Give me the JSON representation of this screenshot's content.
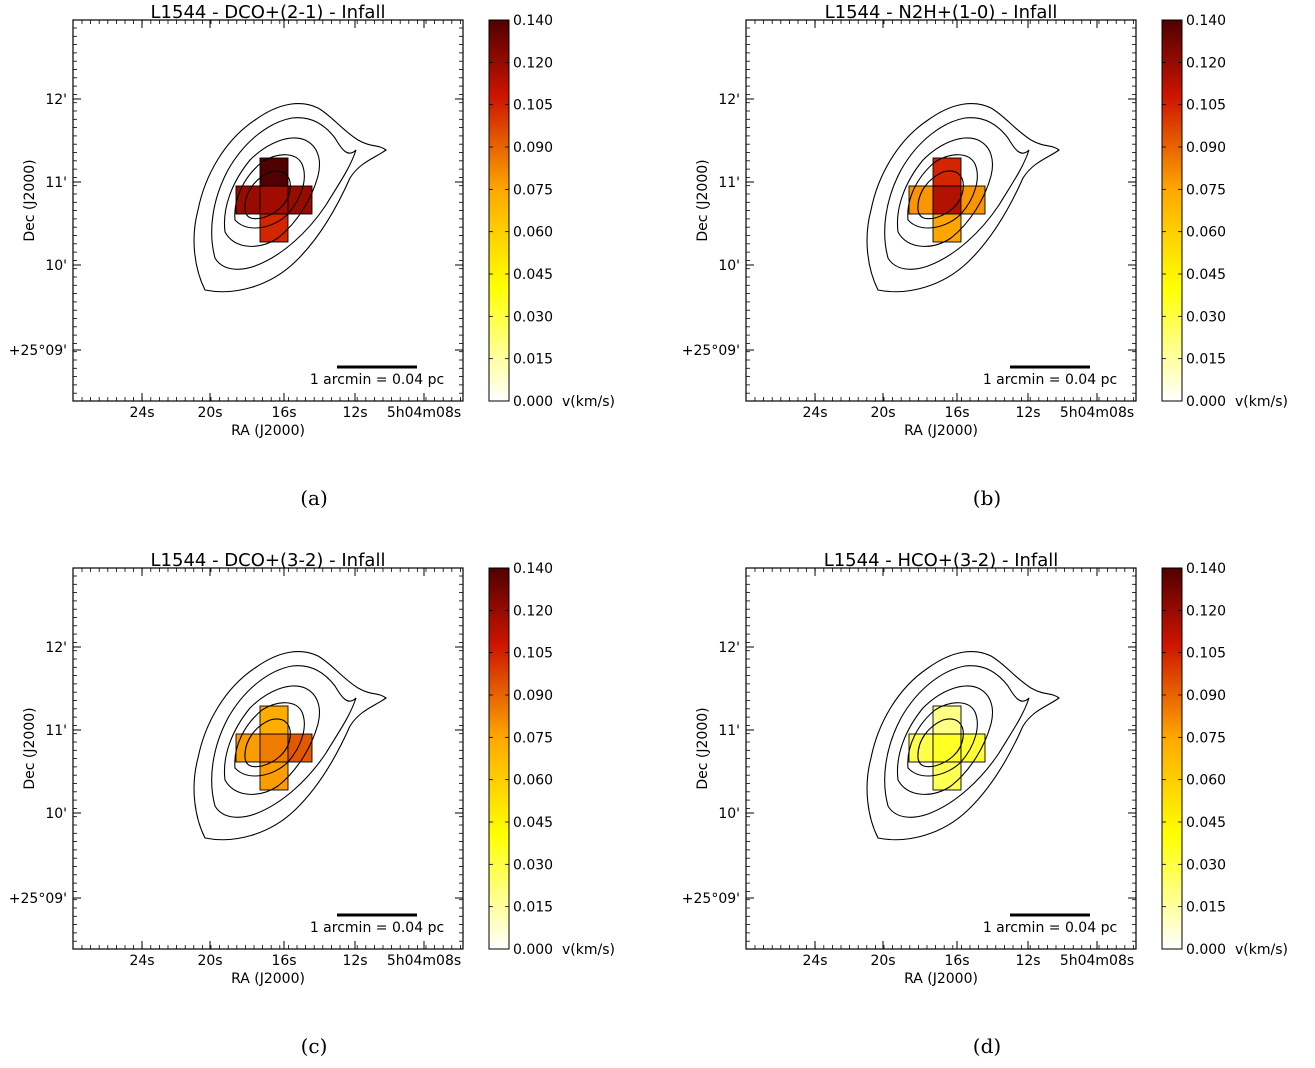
{
  "chart_data": [
    {
      "type": "heatmap",
      "title": "L1544 - DCO+(2-1) - Infall",
      "caption": "(a)",
      "xlabel": "RA (J2000)",
      "ylabel": "Dec (J2000)",
      "x_ticks": [
        "24s",
        "20s",
        "16s",
        "12s",
        "5h04m08s"
      ],
      "y_ticks": [
        "12'",
        "11'",
        "10'",
        "+25°09'"
      ],
      "scalebar_label": "1 arcmin = 0.04 pc",
      "colorbar": {
        "min": 0.0,
        "max": 0.14,
        "unit": "v(km/s)",
        "ticks": [
          "0.140",
          "0.120",
          "0.105",
          "0.090",
          "0.075",
          "0.060",
          "0.045",
          "0.030",
          "0.015",
          "0.000"
        ]
      },
      "pixels": {
        "center": 0.122,
        "north": 0.14,
        "south": 0.108,
        "east": 0.124,
        "west": 0.124
      }
    },
    {
      "type": "heatmap",
      "title": "L1544 - N2H+(1-0) - Infall",
      "caption": "(b)",
      "xlabel": "RA (J2000)",
      "ylabel": "Dec (J2000)",
      "x_ticks": [
        "24s",
        "20s",
        "16s",
        "12s",
        "5h04m08s"
      ],
      "y_ticks": [
        "12'",
        "11'",
        "10'",
        "+25°09'"
      ],
      "scalebar_label": "1 arcmin = 0.04 pc",
      "colorbar": {
        "min": 0.0,
        "max": 0.14,
        "unit": "v(km/s)",
        "ticks": [
          "0.140",
          "0.120",
          "0.105",
          "0.090",
          "0.075",
          "0.060",
          "0.045",
          "0.030",
          "0.015",
          "0.000"
        ]
      },
      "pixels": {
        "center": 0.118,
        "north": 0.108,
        "south": 0.078,
        "east": 0.082,
        "west": 0.082
      }
    },
    {
      "type": "heatmap",
      "title": "L1544 - DCO+(3-2) - Infall",
      "caption": "(c)",
      "xlabel": "RA (J2000)",
      "ylabel": "Dec (J2000)",
      "x_ticks": [
        "24s",
        "20s",
        "16s",
        "12s",
        "5h04m08s"
      ],
      "y_ticks": [
        "12'",
        "11'",
        "10'",
        "+25°09'"
      ],
      "scalebar_label": "1 arcmin = 0.04 pc",
      "colorbar": {
        "min": 0.0,
        "max": 0.14,
        "unit": "v(km/s)",
        "ticks": [
          "0.140",
          "0.120",
          "0.105",
          "0.090",
          "0.075",
          "0.060",
          "0.045",
          "0.030",
          "0.015",
          "0.000"
        ]
      },
      "pixels": {
        "center": 0.088,
        "north": 0.076,
        "south": 0.08,
        "east": 0.096,
        "west": 0.08
      }
    },
    {
      "type": "heatmap",
      "title": "L1544 - HCO+(3-2) - Infall",
      "caption": "(d)",
      "xlabel": "RA (J2000)",
      "ylabel": "Dec (J2000)",
      "x_ticks": [
        "24s",
        "20s",
        "16s",
        "12s",
        "5h04m08s"
      ],
      "y_ticks": [
        "12'",
        "11'",
        "10'",
        "+25°09'"
      ],
      "scalebar_label": "1 arcmin = 0.04 pc",
      "colorbar": {
        "min": 0.0,
        "max": 0.14,
        "unit": "v(km/s)",
        "ticks": [
          "0.140",
          "0.120",
          "0.105",
          "0.090",
          "0.075",
          "0.060",
          "0.045",
          "0.030",
          "0.015",
          "0.000"
        ]
      },
      "pixels": {
        "center": 0.036,
        "north": 0.02,
        "south": 0.028,
        "east": 0.034,
        "west": 0.03
      }
    }
  ]
}
